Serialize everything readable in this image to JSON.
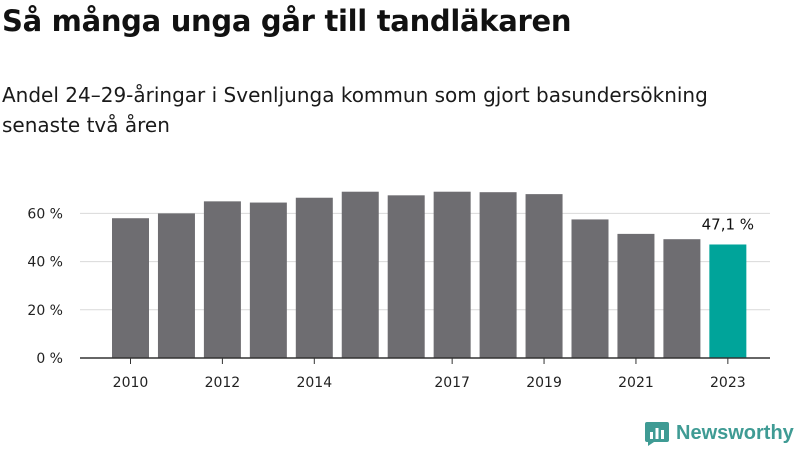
{
  "header": {
    "title": "Så många unga går till tandläkaren",
    "subtitle": "Andel 24–29-åringar i Svenljunga kommun som gjort basundersökning senaste två åren"
  },
  "brand": {
    "name": "Newsworthy",
    "logo_icon": "newsworthy-logo-icon",
    "color": "#3f9b94"
  },
  "colors": {
    "bar": "#6e6d71",
    "highlight": "#00a49a",
    "axis": "#333333",
    "grid": "#d9d9d9"
  },
  "chart_data": {
    "type": "bar",
    "categories": [
      "2010",
      "2011",
      "2012",
      "2013",
      "2014",
      "2015",
      "2016",
      "2017",
      "2018",
      "2019",
      "2020",
      "2021",
      "2022",
      "2023"
    ],
    "values": [
      58,
      60,
      65,
      64.5,
      66.5,
      69,
      67.5,
      69,
      68.8,
      68,
      57.5,
      51.5,
      49.3,
      47.1
    ],
    "ylim": [
      0,
      70
    ],
    "yticks": [
      0,
      20,
      40,
      60
    ],
    "ytick_labels": [
      "0 %",
      "20 %",
      "40 %",
      "60 %"
    ],
    "xtick_labels": [
      "2010",
      "2012",
      "2014",
      "2017",
      "2019",
      "2021",
      "2023"
    ],
    "highlight_index": 13,
    "annotation": "47,1 %",
    "grid": true
  }
}
